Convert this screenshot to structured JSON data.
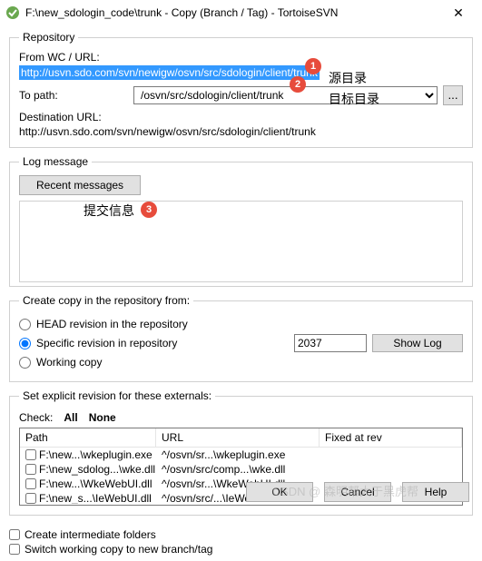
{
  "window": {
    "title": "F:\\new_sdologin_code\\trunk - Copy (Branch / Tag) - TortoiseSVN",
    "close": "✕"
  },
  "repo": {
    "legend": "Repository",
    "from_label": "From WC / URL:",
    "from_url": "http://usvn.sdo.com/svn/newigw/osvn/src/sdologin/client/trunk",
    "to_label": "To path:",
    "to_path": "/osvn/src/sdologin/client/trunk",
    "browse": "...",
    "dest_label": "Destination URL:",
    "dest_url": "http://usvn.sdo.com/svn/newigw/osvn/src/sdologin/client/trunk"
  },
  "log": {
    "legend": "Log message",
    "recent_btn": "Recent messages"
  },
  "copyfrom": {
    "legend": "Create copy in the repository from:",
    "opt_head": "HEAD revision in the repository",
    "opt_rev": "Specific revision in repository",
    "rev_value": "2037",
    "showlog": "Show Log",
    "opt_wc": "Working copy"
  },
  "externals": {
    "legend": "Set explicit revision for these externals:",
    "check_label": "Check:",
    "all": "All",
    "none": "None",
    "col_path": "Path",
    "col_url": "URL",
    "col_fixed": "Fixed at rev",
    "rows": [
      {
        "path": "F:\\new...\\wkeplugin.exe",
        "url": "^/osvn/sr...\\wkeplugin.exe"
      },
      {
        "path": "F:\\new_sdolog...\\wke.dll",
        "url": "^/osvn/src/comp...\\wke.dll"
      },
      {
        "path": "F:\\new...\\WkeWebUI.dll",
        "url": "^/osvn/sr...\\WkeWebUI.dll"
      },
      {
        "path": "F:\\new_s...\\IeWebUI.dll",
        "url": "^/osvn/src/...\\IeWebUI.dll"
      }
    ]
  },
  "bottom": {
    "chk1": "Create intermediate folders",
    "chk2": "Switch working copy to new branch/tag"
  },
  "buttons": {
    "ok": "OK",
    "cancel": "Cancel",
    "help": "Help"
  },
  "annotations": {
    "b1": "1",
    "b2": "2",
    "b3": "3",
    "src_dir": "源目录",
    "dst_dir": "目标目录",
    "commit": "提交信息"
  },
  "watermark": "CSDN @ 森明帮大于黑虎帮"
}
